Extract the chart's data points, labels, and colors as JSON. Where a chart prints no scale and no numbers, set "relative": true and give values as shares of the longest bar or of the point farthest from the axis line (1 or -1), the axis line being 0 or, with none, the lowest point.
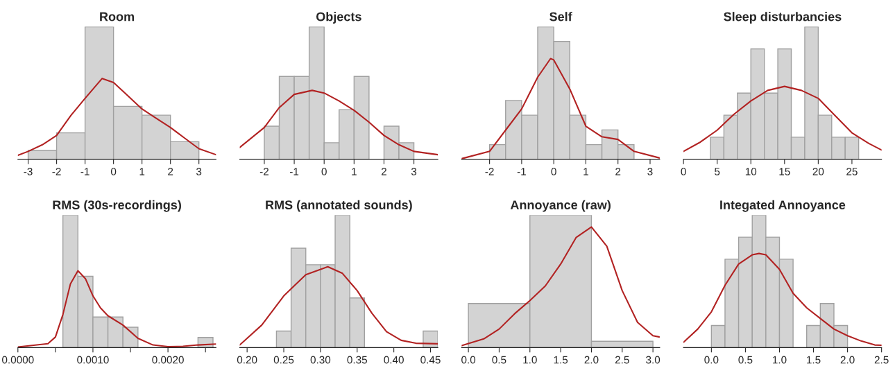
{
  "chart_data": [
    {
      "type": "histogram",
      "title": "Room",
      "relative": true,
      "color": "#d3d3d3",
      "bins": [
        -3,
        -2,
        -1,
        0,
        1,
        2,
        3
      ],
      "values": [
        0.067,
        0.2,
        1,
        0.4,
        0.333,
        0.133
      ],
      "xlim": [
        -3.36,
        3.6
      ],
      "xticks": [
        -3,
        -2,
        -1,
        0,
        1,
        2,
        3
      ],
      "series": [
        {
          "type": "line",
          "color": "#b22222",
          "x": [
            -3.36,
            -3,
            -2.5,
            -2,
            -1.5,
            -1,
            -0.4,
            0,
            0.5,
            1,
            1.5,
            2,
            2.5,
            3,
            3.6
          ],
          "values": [
            0.03,
            0.06,
            0.11,
            0.18,
            0.33,
            0.46,
            0.61,
            0.58,
            0.48,
            0.38,
            0.31,
            0.24,
            0.16,
            0.08,
            0.035
          ]
        }
      ]
    },
    {
      "type": "histogram",
      "title": "Objects",
      "relative": true,
      "color": "#d3d3d3",
      "bins": [
        -2,
        -1.5,
        -1,
        -0.5,
        0,
        0.5,
        1,
        1.5,
        2,
        2.5,
        3
      ],
      "values": [
        0.25,
        0.625,
        0.625,
        1,
        0.125,
        0.375,
        0.625,
        0,
        0.25,
        0.125
      ],
      "xlim": [
        -2.82,
        3.8
      ],
      "xticks": [
        -2,
        -1,
        0,
        1,
        2,
        3
      ],
      "series": [
        {
          "type": "line",
          "color": "#b22222",
          "x": [
            -2.82,
            -2,
            -1.5,
            -1,
            -0.4,
            0,
            0.5,
            1,
            1.5,
            2,
            2.5,
            3,
            3.8
          ],
          "values": [
            0.09,
            0.24,
            0.39,
            0.49,
            0.52,
            0.5,
            0.44,
            0.37,
            0.28,
            0.18,
            0.11,
            0.06,
            0.035
          ]
        }
      ]
    },
    {
      "type": "histogram",
      "title": "Self",
      "relative": true,
      "color": "#d3d3d3",
      "bins": [
        -2,
        -1.5,
        -1,
        -0.5,
        0,
        0.5,
        1,
        1.5,
        2,
        2.5
      ],
      "values": [
        0.111,
        0.444,
        0.333,
        1,
        0.889,
        0.333,
        0.111,
        0.222,
        0.111
      ],
      "xlim": [
        -2.87,
        3.3
      ],
      "xticks": [
        -2,
        -1,
        0,
        1,
        2,
        3
      ],
      "series": [
        {
          "type": "line",
          "color": "#b22222",
          "x": [
            -2.87,
            -2,
            -1.5,
            -1,
            -0.5,
            -0.1,
            0,
            0.5,
            1,
            1.5,
            2,
            2.5,
            3.3
          ],
          "values": [
            0.005,
            0.06,
            0.22,
            0.38,
            0.62,
            0.76,
            0.75,
            0.53,
            0.25,
            0.17,
            0.15,
            0.06,
            0.01
          ]
        }
      ]
    },
    {
      "type": "histogram",
      "title": "Sleep disturbancies",
      "relative": true,
      "color": "#d3d3d3",
      "bins": [
        4,
        6,
        8,
        10,
        12,
        14,
        16,
        18,
        20,
        22,
        24,
        26
      ],
      "values": [
        0.167,
        0.333,
        0.5,
        0.833,
        0.5,
        0.833,
        0.167,
        1,
        0.333,
        0.167,
        0.167
      ],
      "xlim": [
        0,
        29.4
      ],
      "xticks": [
        0,
        5,
        10,
        15,
        20,
        25
      ],
      "series": [
        {
          "type": "line",
          "color": "#b22222",
          "x": [
            0,
            2.5,
            5,
            7.5,
            10,
            12.5,
            15,
            17.5,
            20,
            22.5,
            25,
            27.5,
            29.4
          ],
          "values": [
            0.06,
            0.13,
            0.22,
            0.34,
            0.44,
            0.52,
            0.55,
            0.52,
            0.46,
            0.33,
            0.2,
            0.12,
            0.07
          ]
        }
      ]
    },
    {
      "type": "histogram",
      "title": "RMS (30s-recordings)",
      "relative": true,
      "color": "#d3d3d3",
      "bins": [
        0.0006,
        0.0008,
        0.001,
        0.0012,
        0.0014,
        0.0016,
        0.0018,
        0.002,
        0.0022,
        0.0024,
        0.0026
      ],
      "values": [
        1,
        0.538,
        0.231,
        0.231,
        0.154,
        0,
        0,
        0,
        0,
        0.077
      ],
      "xlim": [
        0,
        0.00264
      ],
      "xticks": [
        {
          "value": 0,
          "label": "0.0000"
        },
        {
          "value": 0.0005,
          "label": null
        },
        {
          "value": 0.001,
          "label": "0.0010"
        },
        {
          "value": 0.0015,
          "label": null
        },
        {
          "value": 0.002,
          "label": "0.0020"
        },
        {
          "value": 0.0025,
          "label": null
        }
      ],
      "series": [
        {
          "type": "line",
          "color": "#b22222",
          "x": [
            0,
            0.0004,
            0.0005,
            0.0006,
            0.0007,
            0.0008,
            0.0009,
            0.001,
            0.0011,
            0.0012,
            0.0014,
            0.0016,
            0.0018,
            0.002,
            0.0022,
            0.0024,
            0.00264
          ],
          "values": [
            0.005,
            0.03,
            0.08,
            0.25,
            0.48,
            0.58,
            0.52,
            0.39,
            0.3,
            0.24,
            0.17,
            0.07,
            0.02,
            0.007,
            0.01,
            0.02,
            0.027
          ]
        }
      ]
    },
    {
      "type": "histogram",
      "title": "RMS (annotated sounds)",
      "relative": true,
      "color": "#d3d3d3",
      "bins": [
        0.24,
        0.26,
        0.28,
        0.3,
        0.32,
        0.34,
        0.36,
        0.38,
        0.4,
        0.42,
        0.44,
        0.46
      ],
      "values": [
        0.125,
        0.75,
        0.625,
        0.625,
        1,
        0.375,
        0,
        0,
        0,
        0,
        0.125
      ],
      "xlim": [
        0.19,
        0.46
      ],
      "xticks": [
        {
          "value": 0.2,
          "label": "0.20"
        },
        {
          "value": 0.25,
          "label": "0.25"
        },
        {
          "value": 0.3,
          "label": "0.30"
        },
        {
          "value": 0.35,
          "label": "0.35"
        },
        {
          "value": 0.4,
          "label": "0.40"
        },
        {
          "value": 0.45,
          "label": "0.45"
        }
      ],
      "series": [
        {
          "type": "line",
          "color": "#b22222",
          "x": [
            0.19,
            0.22,
            0.25,
            0.28,
            0.31,
            0.33,
            0.35,
            0.37,
            0.39,
            0.41,
            0.43,
            0.46
          ],
          "values": [
            0.02,
            0.17,
            0.39,
            0.55,
            0.61,
            0.56,
            0.43,
            0.26,
            0.12,
            0.055,
            0.033,
            0.029
          ]
        }
      ]
    },
    {
      "type": "histogram",
      "title": "Annoyance (raw)",
      "relative": true,
      "color": "#d3d3d3",
      "bins": [
        0,
        1,
        2,
        3
      ],
      "values": [
        0.333,
        1,
        0.048
      ],
      "xlim": [
        -0.11,
        3.11
      ],
      "xticks": [
        {
          "value": 0,
          "label": "0.0"
        },
        {
          "value": 0.5,
          "label": "0.5"
        },
        {
          "value": 1,
          "label": "1.0"
        },
        {
          "value": 1.5,
          "label": "1.5"
        },
        {
          "value": 2,
          "label": "2.0"
        },
        {
          "value": 2.5,
          "label": "2.5"
        },
        {
          "value": 3,
          "label": "3.0"
        }
      ],
      "series": [
        {
          "type": "line",
          "color": "#b22222",
          "x": [
            -0.11,
            0.25,
            0.5,
            0.75,
            1,
            1.25,
            1.5,
            1.75,
            2,
            2.25,
            2.5,
            2.75,
            3,
            3.11
          ],
          "values": [
            0.015,
            0.066,
            0.14,
            0.255,
            0.355,
            0.465,
            0.63,
            0.83,
            0.91,
            0.765,
            0.43,
            0.19,
            0.09,
            0.08
          ]
        }
      ]
    },
    {
      "type": "histogram",
      "title": "Integated Annoyance",
      "relative": true,
      "color": "#d3d3d3",
      "bins": [
        0,
        0.2,
        0.4,
        0.6,
        0.8,
        1,
        1.2,
        1.4,
        1.6,
        1.8,
        2
      ],
      "values": [
        0.167,
        0.667,
        0.833,
        1,
        0.833,
        0.667,
        0,
        0.167,
        0.333,
        0.167
      ],
      "xlim": [
        -0.41,
        2.5
      ],
      "xticks": [
        {
          "value": 0,
          "label": "0.0"
        },
        {
          "value": 0.5,
          "label": "0.5"
        },
        {
          "value": 1,
          "label": "1.0"
        },
        {
          "value": 1.5,
          "label": "1.5"
        },
        {
          "value": 2,
          "label": "2.0"
        },
        {
          "value": 2.5,
          "label": "2.5"
        }
      ],
      "series": [
        {
          "type": "line",
          "color": "#b22222",
          "x": [
            -0.41,
            -0.2,
            0,
            0.2,
            0.4,
            0.6,
            0.7,
            0.8,
            1,
            1.2,
            1.4,
            1.6,
            1.8,
            2,
            2.2,
            2.4,
            2.5
          ],
          "values": [
            0.04,
            0.14,
            0.27,
            0.47,
            0.63,
            0.7,
            0.71,
            0.7,
            0.59,
            0.41,
            0.3,
            0.22,
            0.14,
            0.09,
            0.05,
            0.02,
            0.018
          ]
        }
      ]
    }
  ]
}
